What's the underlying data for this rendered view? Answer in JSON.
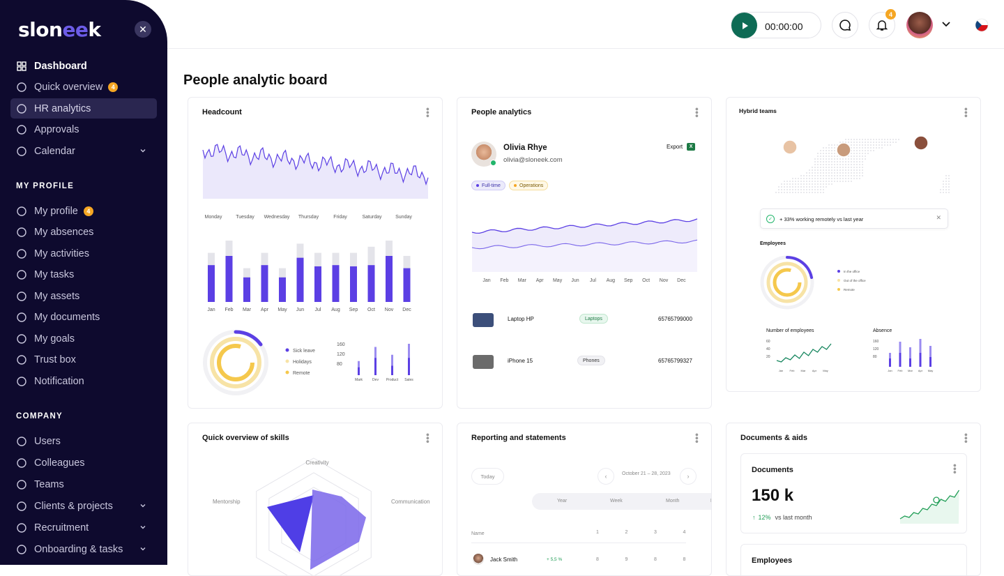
{
  "sidebar": {
    "logo_prefix": "slon",
    "logo_mid": "ee",
    "logo_suffix": "k",
    "main": [
      {
        "label": "Dashboard",
        "bold": true
      },
      {
        "label": "Quick overview",
        "badge": "4"
      },
      {
        "label": "HR analytics",
        "active": true
      },
      {
        "label": "Approvals"
      },
      {
        "label": "Calendar",
        "chevron": true
      }
    ],
    "profile_title": "MY PROFILE",
    "profile": [
      {
        "label": "My profile",
        "badge": "4"
      },
      {
        "label": "My absences"
      },
      {
        "label": "My activities"
      },
      {
        "label": "My tasks"
      },
      {
        "label": "My assets"
      },
      {
        "label": "My documents"
      },
      {
        "label": "My goals"
      },
      {
        "label": "Trust box"
      },
      {
        "label": "Notification"
      }
    ],
    "company_title": "COMPANY",
    "company": [
      {
        "label": "Users"
      },
      {
        "label": "Colleagues"
      },
      {
        "label": "Teams"
      },
      {
        "label": "Clients & projects",
        "chevron": true
      },
      {
        "label": "Recruitment",
        "chevron": true
      },
      {
        "label": "Onboarding & tasks",
        "chevron": true
      }
    ]
  },
  "topbar": {
    "timer": "00:00:00",
    "bell_badge": "4"
  },
  "page_title": "People analytic board",
  "headcount": {
    "title": "Headcount",
    "days": [
      "Monday",
      "Tuesday",
      "Wednesday",
      "Thursday",
      "Friday",
      "Saturday",
      "Sunday"
    ],
    "months": [
      "Jan",
      "Feb",
      "Mar",
      "Apr",
      "May",
      "Jun",
      "Jul",
      "Aug",
      "Sep",
      "Oct",
      "Nov",
      "Dec"
    ],
    "bars": [
      {
        "value": 0.6,
        "total": 0.8
      },
      {
        "value": 0.75,
        "total": 1.0
      },
      {
        "value": 0.4,
        "total": 0.55
      },
      {
        "value": 0.6,
        "total": 0.8
      },
      {
        "value": 0.4,
        "total": 0.55
      },
      {
        "value": 0.72,
        "total": 0.95
      },
      {
        "value": 0.58,
        "total": 0.8
      },
      {
        "value": 0.6,
        "total": 0.8
      },
      {
        "value": 0.58,
        "total": 0.8
      },
      {
        "value": 0.6,
        "total": 0.9
      },
      {
        "value": 0.75,
        "total": 1.0
      },
      {
        "value": 0.55,
        "total": 0.75
      }
    ],
    "legend": [
      "Sick leave",
      "Holidays",
      "Remote"
    ],
    "mini_ticks": [
      "160",
      "120",
      "80"
    ],
    "mini_cats": [
      "Mark",
      "Dev",
      "Product",
      "Sales"
    ]
  },
  "people": {
    "title": "People analytics",
    "name": "Olivia Rhye",
    "email": "olivia@sloneek.com",
    "export": "Export",
    "tags": [
      "Full-time",
      "Operations"
    ],
    "months": [
      "Jan",
      "Feb",
      "Mar",
      "Apr",
      "May",
      "Jun",
      "Jul",
      "Aug",
      "Sep",
      "Oct",
      "Nov",
      "Dec"
    ],
    "assets": [
      {
        "name": "Laptop HP",
        "tag": "Laptops",
        "code": "65765799000"
      },
      {
        "name": "iPhone 15",
        "tag": "Phones",
        "code": "65765799327"
      }
    ]
  },
  "hybrid": {
    "title": "Hybrid teams",
    "notice": "+ 33% working remotely vs last year",
    "employees": "Employees",
    "legend": [
      "In the office",
      "Out of the office",
      "Remote"
    ],
    "num_title": "Number of employees",
    "num_ticks": [
      "60",
      "40",
      "20"
    ],
    "num_months": [
      "Jan",
      "Feb",
      "Mar",
      "Apr",
      "May"
    ],
    "abs_title": "Absence",
    "abs_ticks": [
      "160",
      "120",
      "80"
    ],
    "abs_months": [
      "Jan",
      "Feb",
      "Mar",
      "Apr",
      "May"
    ]
  },
  "skills": {
    "title": "Quick overview of skills",
    "axes": [
      "Creativity",
      "Mentorship",
      "Communication"
    ]
  },
  "reporting": {
    "title": "Reporting and statements",
    "today": "Today",
    "range": "October 21 – 28, 2023",
    "tabs": [
      "Year",
      "Week",
      "Month",
      "D"
    ],
    "col_name": "Name",
    "cols": [
      "1",
      "2",
      "3",
      "4"
    ],
    "row": {
      "name": "Jack Smith",
      "delta": "+ 5,5 %",
      "vals": [
        "8",
        "9",
        "8",
        "8"
      ]
    }
  },
  "docs": {
    "title": "Documents & aids",
    "inner_title": "Documents",
    "value": "150 k",
    "delta": "12%",
    "delta_note": "vs last month",
    "employees": "Employees"
  },
  "colors": {
    "accent": "#5b3fe4",
    "sidebar": "#0e0a2e",
    "yellow": "#f5c84c",
    "green": "#0e6b55"
  }
}
